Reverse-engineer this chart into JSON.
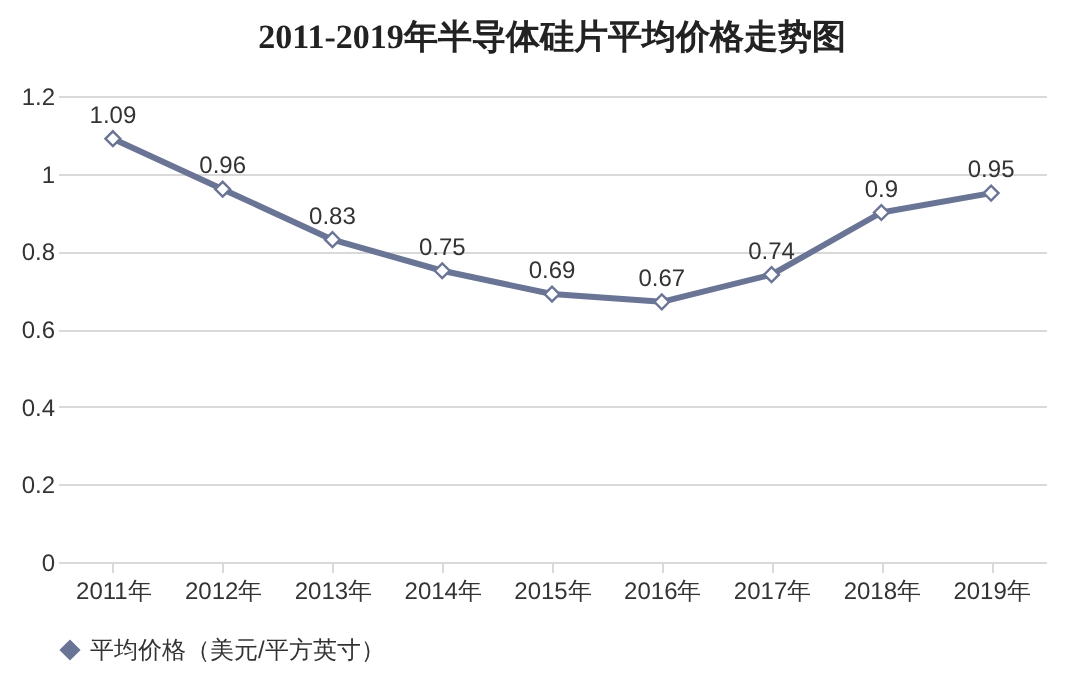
{
  "chart_data": {
    "type": "line",
    "title": "2011-2019年半导体硅片平均价格走势图",
    "categories": [
      "2011年",
      "2012年",
      "2013年",
      "2014年",
      "2015年",
      "2016年",
      "2017年",
      "2018年",
      "2019年"
    ],
    "series": [
      {
        "name": "平均价格（美元/平方英寸）",
        "color": "#6a7596",
        "values": [
          1.09,
          0.96,
          0.83,
          0.75,
          0.69,
          0.67,
          0.74,
          0.9,
          0.95
        ]
      }
    ],
    "ylim": [
      0,
      1.2
    ],
    "yticks": [
      0,
      0.2,
      0.4,
      0.6,
      0.8,
      1,
      1.2
    ],
    "grid": "y",
    "legend": "bottom",
    "marker": "diamond",
    "line_style": "solid",
    "data_labels": true
  }
}
